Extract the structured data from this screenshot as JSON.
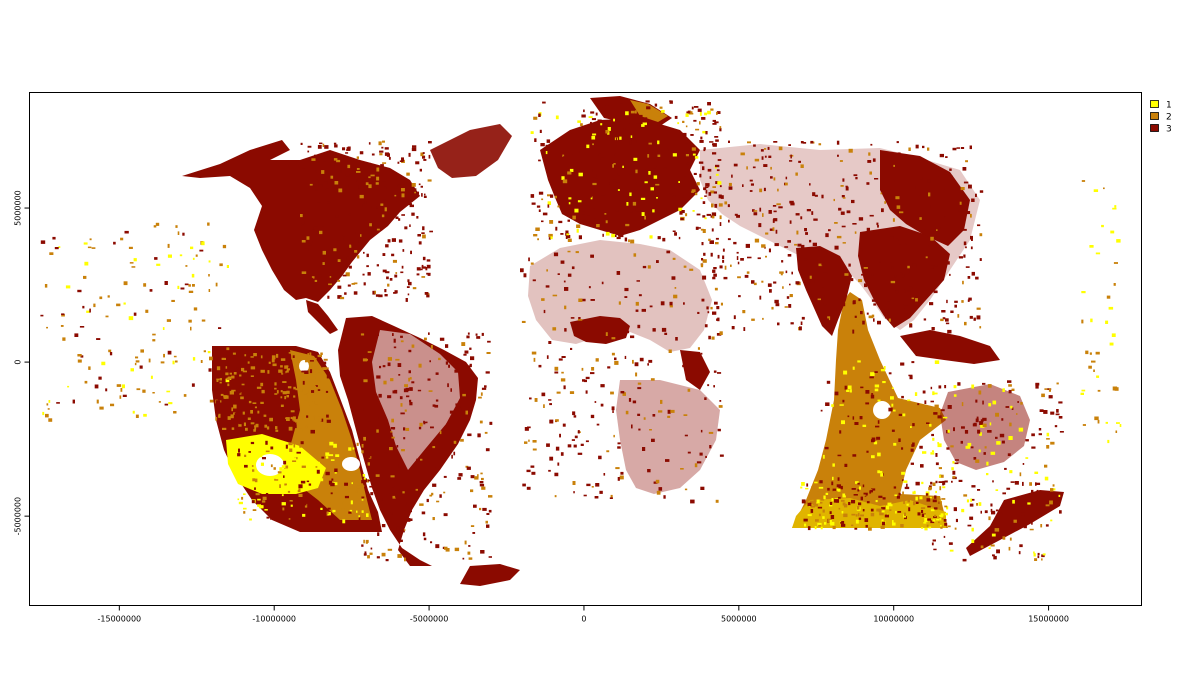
{
  "chart_data": {
    "type": "heatmap",
    "title": "",
    "xlabel": "",
    "ylabel": "",
    "xlim": [
      -17900000,
      18000000
    ],
    "ylim": [
      -7900000,
      8750000
    ],
    "x_ticks": [
      {
        "value": -15000000,
        "label": "-15000000"
      },
      {
        "value": -10000000,
        "label": "-10000000"
      },
      {
        "value": -5000000,
        "label": "-5000000"
      },
      {
        "value": 0,
        "label": "0"
      },
      {
        "value": 5000000,
        "label": "5000000"
      },
      {
        "value": 10000000,
        "label": "10000000"
      },
      {
        "value": 15000000,
        "label": "15000000"
      }
    ],
    "y_ticks": [
      {
        "value": -5000000,
        "label": "-5000000"
      },
      {
        "value": 0,
        "label": "0"
      },
      {
        "value": 5000000,
        "label": "5000000"
      }
    ],
    "legend_position": "top-right",
    "legend": [
      {
        "label": "1",
        "color": "#ffff00"
      },
      {
        "label": "2",
        "color": "#c9810a"
      },
      {
        "label": "3",
        "color": "#8b0a00"
      }
    ],
    "classes": {
      "1": "#ffff00",
      "2": "#c9810a",
      "3": "#8b0a00"
    }
  }
}
